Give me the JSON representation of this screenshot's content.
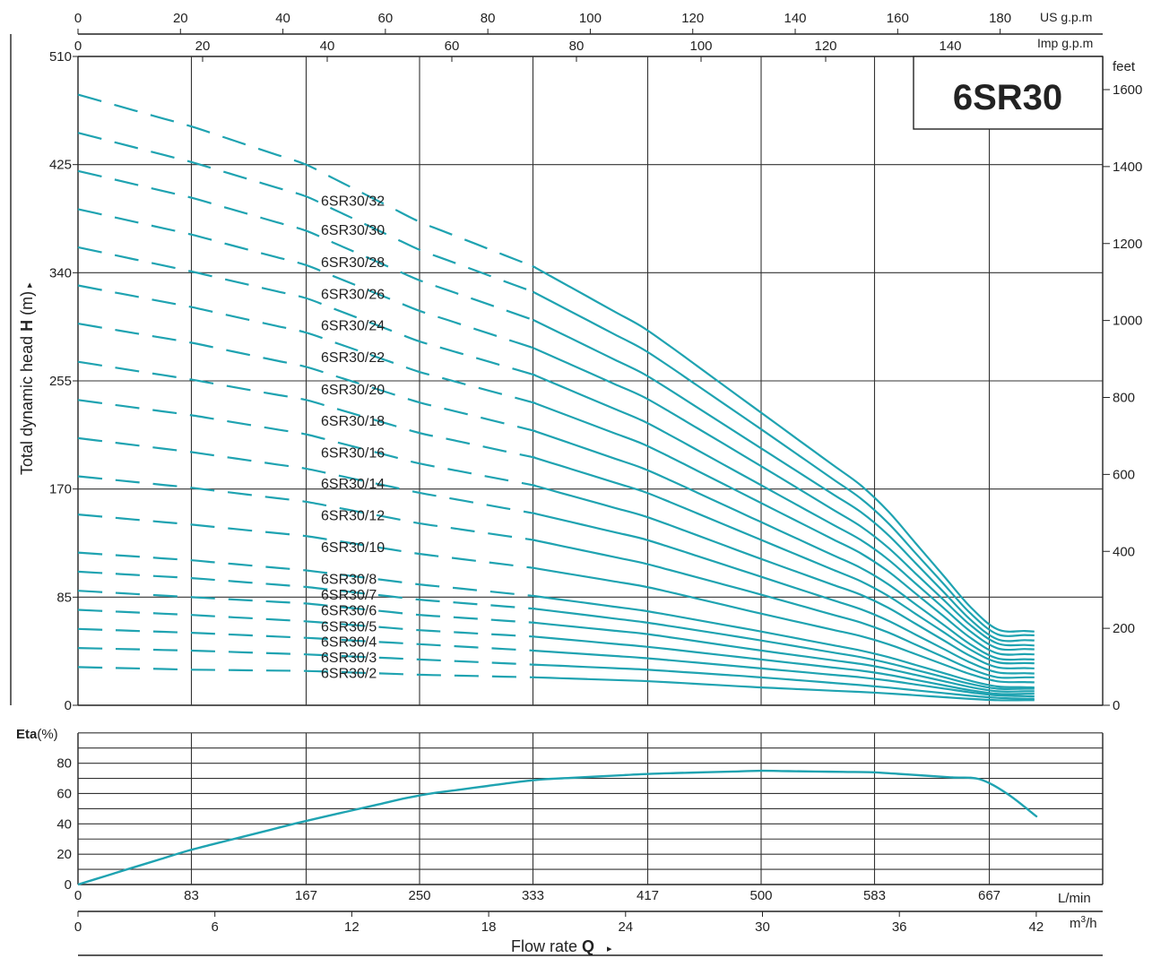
{
  "badge": {
    "text": "6SR30"
  },
  "colors": {
    "curve": "#1fa3b1",
    "grid": "#333333",
    "axis": "#222222",
    "badge": "#1fa3b1"
  },
  "axes_labels": {
    "us_gpm": "US g.p.m",
    "imp_gpm": "Imp g.p.m",
    "feet": "feet",
    "ylabel_pre": "Total dynamic head ",
    "ylabel_bold": "H",
    "ylabel_post": " (m)",
    "arrow": "▸",
    "eta_bold": "Eta",
    "eta_unit": "(%)",
    "lmin": "L/min",
    "m3h_main": "m",
    "m3h_sup": "3",
    "m3h_tail": "/h",
    "flow_pre": "Flow  rate  ",
    "flow_bold": "Q"
  },
  "us_gpm_ticks": [
    "0",
    "20",
    "40",
    "60",
    "80",
    "100",
    "120",
    "140",
    "160",
    "180"
  ],
  "imp_gpm_ticks": [
    "0",
    "20",
    "40",
    "60",
    "80",
    "100",
    "120",
    "140"
  ],
  "head_ticks": [
    "510",
    "425",
    "340",
    "255",
    "170",
    "85",
    "0"
  ],
  "feet_ticks": [
    "1600",
    "1400",
    "1200",
    "1000",
    "800",
    "600",
    "400",
    "200",
    "0"
  ],
  "eta_ticks": [
    "80",
    "60",
    "40",
    "20",
    "0"
  ],
  "lmin_ticks": [
    "0",
    "83",
    "167",
    "250",
    "333",
    "417",
    "500",
    "583",
    "667"
  ],
  "m3h_ticks": [
    "0",
    "6",
    "12",
    "18",
    "24",
    "30",
    "36",
    "42"
  ],
  "chart_data": [
    {
      "type": "line",
      "title": "6SR30",
      "xlabel": "Flow rate Q",
      "ylabel": "Total dynamic head H (m)",
      "x_unit": "L/min",
      "xlim": [
        0,
        792
      ],
      "ylim": [
        0,
        510
      ],
      "secondary_y_unit": "feet",
      "secondary_x_units": [
        "m3/h",
        "US g.p.m",
        "Imp g.p.m"
      ],
      "grid": true,
      "dashed_region": "low-flow portion of each curve (about 0–333 L/min) drawn dashed",
      "x": [
        0,
        83,
        167,
        250,
        333,
        417,
        500,
        583,
        667,
        700
      ],
      "series": [
        {
          "name": "6SR30/32",
          "values": [
            480,
            455,
            425,
            380,
            345,
            295,
            230,
            165,
            60,
            58
          ]
        },
        {
          "name": "6SR30/30",
          "values": [
            450,
            427,
            400,
            358,
            325,
            278,
            217,
            155,
            56,
            55
          ]
        },
        {
          "name": "6SR30/28",
          "values": [
            420,
            399,
            373,
            334,
            303,
            259,
            202,
            145,
            52,
            51
          ]
        },
        {
          "name": "6SR30/26",
          "values": [
            390,
            370,
            346,
            310,
            281,
            241,
            188,
            134,
            49,
            47
          ]
        },
        {
          "name": "6SR30/24",
          "values": [
            360,
            341,
            320,
            286,
            260,
            222,
            173,
            124,
            45,
            44
          ]
        },
        {
          "name": "6SR30/22",
          "values": [
            330,
            313,
            293,
            262,
            238,
            204,
            159,
            114,
            41,
            40
          ]
        },
        {
          "name": "6SR30/20",
          "values": [
            300,
            285,
            266,
            238,
            216,
            185,
            144,
            103,
            37,
            36
          ]
        },
        {
          "name": "6SR30/18",
          "values": [
            270,
            256,
            240,
            214,
            195,
            167,
            130,
            93,
            34,
            33
          ]
        },
        {
          "name": "6SR30/16",
          "values": [
            240,
            228,
            213,
            190,
            173,
            148,
            115,
            83,
            30,
            29
          ]
        },
        {
          "name": "6SR30/14",
          "values": [
            210,
            199,
            186,
            167,
            151,
            130,
            101,
            72,
            26,
            25
          ]
        },
        {
          "name": "6SR30/12",
          "values": [
            180,
            171,
            160,
            143,
            130,
            111,
            87,
            62,
            22,
            22
          ]
        },
        {
          "name": "6SR30/10",
          "values": [
            150,
            142,
            133,
            119,
            108,
            93,
            72,
            52,
            19,
            18
          ]
        },
        {
          "name": "6SR30/8",
          "values": [
            120,
            114,
            106,
            95,
            86,
            74,
            58,
            41,
            15,
            14
          ]
        },
        {
          "name": "6SR30/7",
          "values": [
            105,
            100,
            93,
            83,
            76,
            65,
            51,
            36,
            13,
            13
          ]
        },
        {
          "name": "6SR30/6",
          "values": [
            90,
            85,
            80,
            71,
            65,
            56,
            43,
            31,
            11,
            11
          ]
        },
        {
          "name": "6SR30/5",
          "values": [
            75,
            71,
            66,
            59,
            54,
            46,
            36,
            26,
            9,
            9
          ]
        },
        {
          "name": "6SR30/4",
          "values": [
            60,
            57,
            53,
            48,
            43,
            37,
            29,
            21,
            8,
            7
          ]
        },
        {
          "name": "6SR30/3",
          "values": [
            45,
            43,
            40,
            36,
            32,
            28,
            22,
            15,
            6,
            5
          ]
        },
        {
          "name": "6SR30/2",
          "values": [
            30,
            28,
            27,
            24,
            22,
            19,
            14,
            10,
            4,
            4
          ]
        }
      ]
    },
    {
      "type": "line",
      "xlabel": "Flow rate Q",
      "ylabel": "Eta(%)",
      "x_unit": "L/min",
      "xlim": [
        0,
        792
      ],
      "ylim": [
        0,
        90
      ],
      "grid": true,
      "x": [
        0,
        83,
        167,
        250,
        333,
        417,
        500,
        583,
        667,
        700
      ],
      "series": [
        {
          "name": "Eta",
          "values": [
            0,
            23,
            42,
            59,
            69,
            73,
            75,
            74,
            69,
            46
          ]
        }
      ]
    }
  ]
}
